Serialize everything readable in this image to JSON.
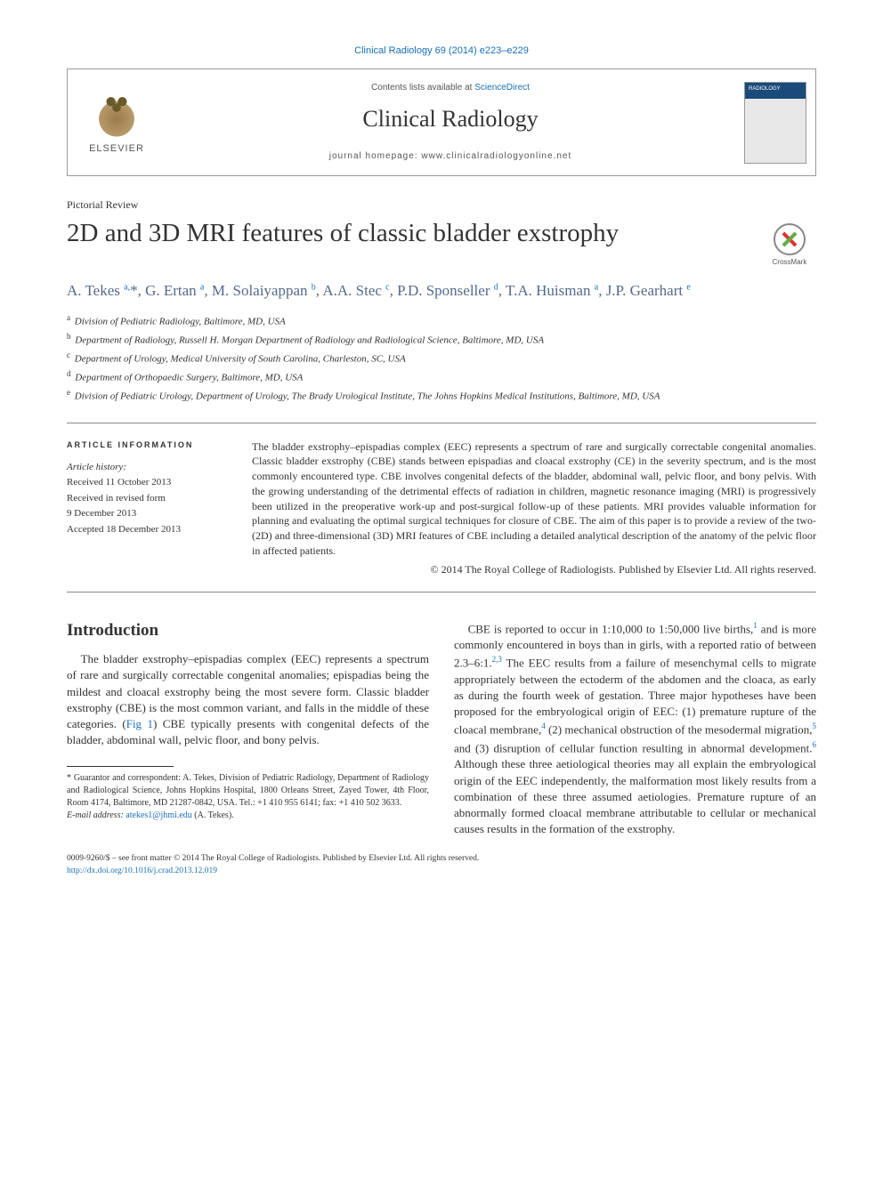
{
  "citation": {
    "prefix": "Clinical Radiology 69 (2014) e223–e229",
    "link": "Clinical Radiology 69 (2014) e223–e229"
  },
  "header": {
    "contents_prefix": "Contents lists available at ",
    "contents_link": "ScienceDirect",
    "journal": "Clinical Radiology",
    "homepage_prefix": "journal homepage: ",
    "homepage_url": "www.clinicalradiologyonline.net",
    "elsevier": "ELSEVIER",
    "crossmark": "CrossMark"
  },
  "article": {
    "type": "Pictorial Review",
    "title": "2D and 3D MRI features of classic bladder exstrophy"
  },
  "authors_html": "A. Tekes <sup>a,</sup>*, G. Ertan <sup>a</sup>, M. Solaiyappan <sup>b</sup>, A.A. Stec <sup>c</sup>, P.D. Sponseller <sup>d</sup>, T.A. Huisman <sup>a</sup>, J.P. Gearhart <sup>e</sup>",
  "affiliations": [
    {
      "sup": "a",
      "text": "Division of Pediatric Radiology, Baltimore, MD, USA"
    },
    {
      "sup": "b",
      "text": "Department of Radiology, Russell H. Morgan Department of Radiology and Radiological Science, Baltimore, MD, USA"
    },
    {
      "sup": "c",
      "text": "Department of Urology, Medical University of South Carolina, Charleston, SC, USA"
    },
    {
      "sup": "d",
      "text": "Department of Orthopaedic Surgery, Baltimore, MD, USA"
    },
    {
      "sup": "e",
      "text": "Division of Pediatric Urology, Department of Urology, The Brady Urological Institute, The Johns Hopkins Medical Institutions, Baltimore, MD, USA"
    }
  ],
  "meta": {
    "heading": "ARTICLE INFORMATION",
    "history_label": "Article history:",
    "received": "Received 11 October 2013",
    "revised1": "Received in revised form",
    "revised2": "9 December 2013",
    "accepted": "Accepted 18 December 2013"
  },
  "abstract": {
    "text": "The bladder exstrophy–epispadias complex (EEC) represents a spectrum of rare and surgically correctable congenital anomalies. Classic bladder exstrophy (CBE) stands between epispadias and cloacal exstrophy (CE) in the severity spectrum, and is the most commonly encountered type. CBE involves congenital defects of the bladder, abdominal wall, pelvic floor, and bony pelvis. With the growing understanding of the detrimental effects of radiation in children, magnetic resonance imaging (MRI) is progressively been utilized in the preoperative work-up and post-surgical follow-up of these patients. MRI provides valuable information for planning and evaluating the optimal surgical techniques for closure of CBE. The aim of this paper is to provide a review of the two- (2D) and three-dimensional (3D) MRI features of CBE including a detailed analytical description of the anatomy of the pelvic floor in affected patients.",
    "copyright": "© 2014 The Royal College of Radiologists. Published by Elsevier Ltd. All rights reserved."
  },
  "sections": {
    "intro_h": "Introduction",
    "intro_p1a": "The bladder exstrophy–epispadias complex (EEC) represents a spectrum of rare and surgically correctable congenital anomalies; epispadias being the mildest and cloacal exstrophy being the most severe form. Classic bladder exstrophy (CBE) is the most common variant, and falls in the middle of these categories. (",
    "intro_fig1": "Fig 1",
    "intro_p1b": ") CBE typically presents with congenital defects of the bladder, abdominal wall, pelvic floor, and bony pelvis.",
    "intro_p2a": "CBE is reported to occur in 1:10,000 to 1:50,000 live births,",
    "ref1": "1",
    "intro_p2b": " and is more commonly encountered in boys than in girls, with a reported ratio of between 2.3–6:1.",
    "ref23": "2,3",
    "intro_p2c": " The EEC results from a failure of mesenchymal cells to migrate appropriately between the ectoderm of the abdomen and the cloaca, as early as during the fourth week of gestation. Three major hypotheses have been proposed for the embryological origin of EEC: (1) premature rupture of the cloacal membrane,",
    "ref4": "4",
    "intro_p2d": " (2) mechanical obstruction of the mesodermal migration,",
    "ref5": "5",
    "intro_p2e": " and (3) disruption of cellular function resulting in abnormal development.",
    "ref6": "6",
    "intro_p2f": " Although these three aetiological theories may all explain the embryological origin of the EEC independently, the malformation most likely results from a combination of these three assumed aetiologies. Premature rupture of an abnormally formed cloacal membrane attributable to cellular or mechanical causes results in the formation of the exstrophy."
  },
  "footnote": {
    "text": "* Guarantor and correspondent: A. Tekes, Division of Pediatric Radiology, Department of Radiology and Radiological Science, Johns Hopkins Hospital, 1800 Orleans Street, Zayed Tower, 4th Floor, Room 4174, Baltimore, MD 21287-0842, USA. Tel.: +1 410 955 6141; fax: +1 410 502 3633.",
    "email_label": "E-mail address: ",
    "email": "atekes1@jhmi.edu",
    "email_suffix": " (A. Tekes)."
  },
  "bottom": {
    "line1": "0009-9260/$ – see front matter © 2014 The Royal College of Radiologists. Published by Elsevier Ltd. All rights reserved.",
    "doi": "http://dx.doi.org/10.1016/j.crad.2013.12.019"
  },
  "colors": {
    "link": "#1a6fb5",
    "author": "#556a8a"
  }
}
